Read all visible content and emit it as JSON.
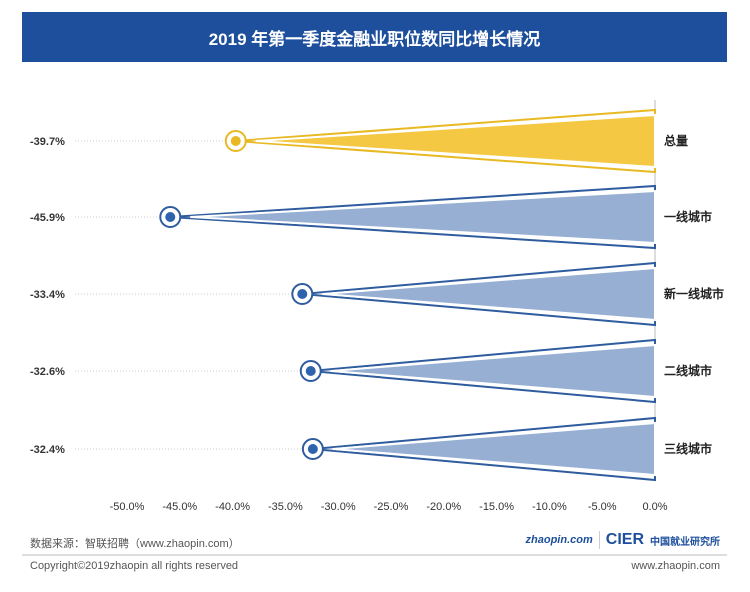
{
  "header": {
    "title": "2019 年第一季度金融业职位数同比增长情况"
  },
  "colors": {
    "header": "#1d4f9c",
    "total": "#f4c842",
    "total_stroke": "#e8b923",
    "city": "#97afd3",
    "city_stroke": "#2f5c9e",
    "dot_blue": "#2e63ad"
  },
  "chart_data": {
    "type": "funnel-bar",
    "categories": [
      "总量",
      "一线城市",
      "新一线城市",
      "二线城市",
      "三线城市"
    ],
    "values": [
      -39.7,
      -45.9,
      -33.4,
      -32.6,
      -32.4
    ],
    "value_labels": [
      "-39.7%",
      "-45.9%",
      "-33.4%",
      "-32.6%",
      "-32.4%"
    ],
    "xlim": [
      -50,
      0
    ],
    "x_ticks": [
      "-50.0%",
      "-45.0%",
      "-40.0%",
      "-35.0%",
      "-30.0%",
      "-25.0%",
      "-20.0%",
      "-15.0%",
      "-10.0%",
      "-5.0%",
      "0.0%"
    ],
    "grid": false
  },
  "footer": {
    "source": "数据来源：智联招聘（www.zhaopin.com）",
    "logo_zhaopin": "zhaopin.com",
    "logo_cier": "CIER",
    "logo_cier_cn": "中国就业研究所",
    "copyright": "Copyright©2019zhaopin all rights reserved",
    "website": "www.zhaopin.com"
  }
}
